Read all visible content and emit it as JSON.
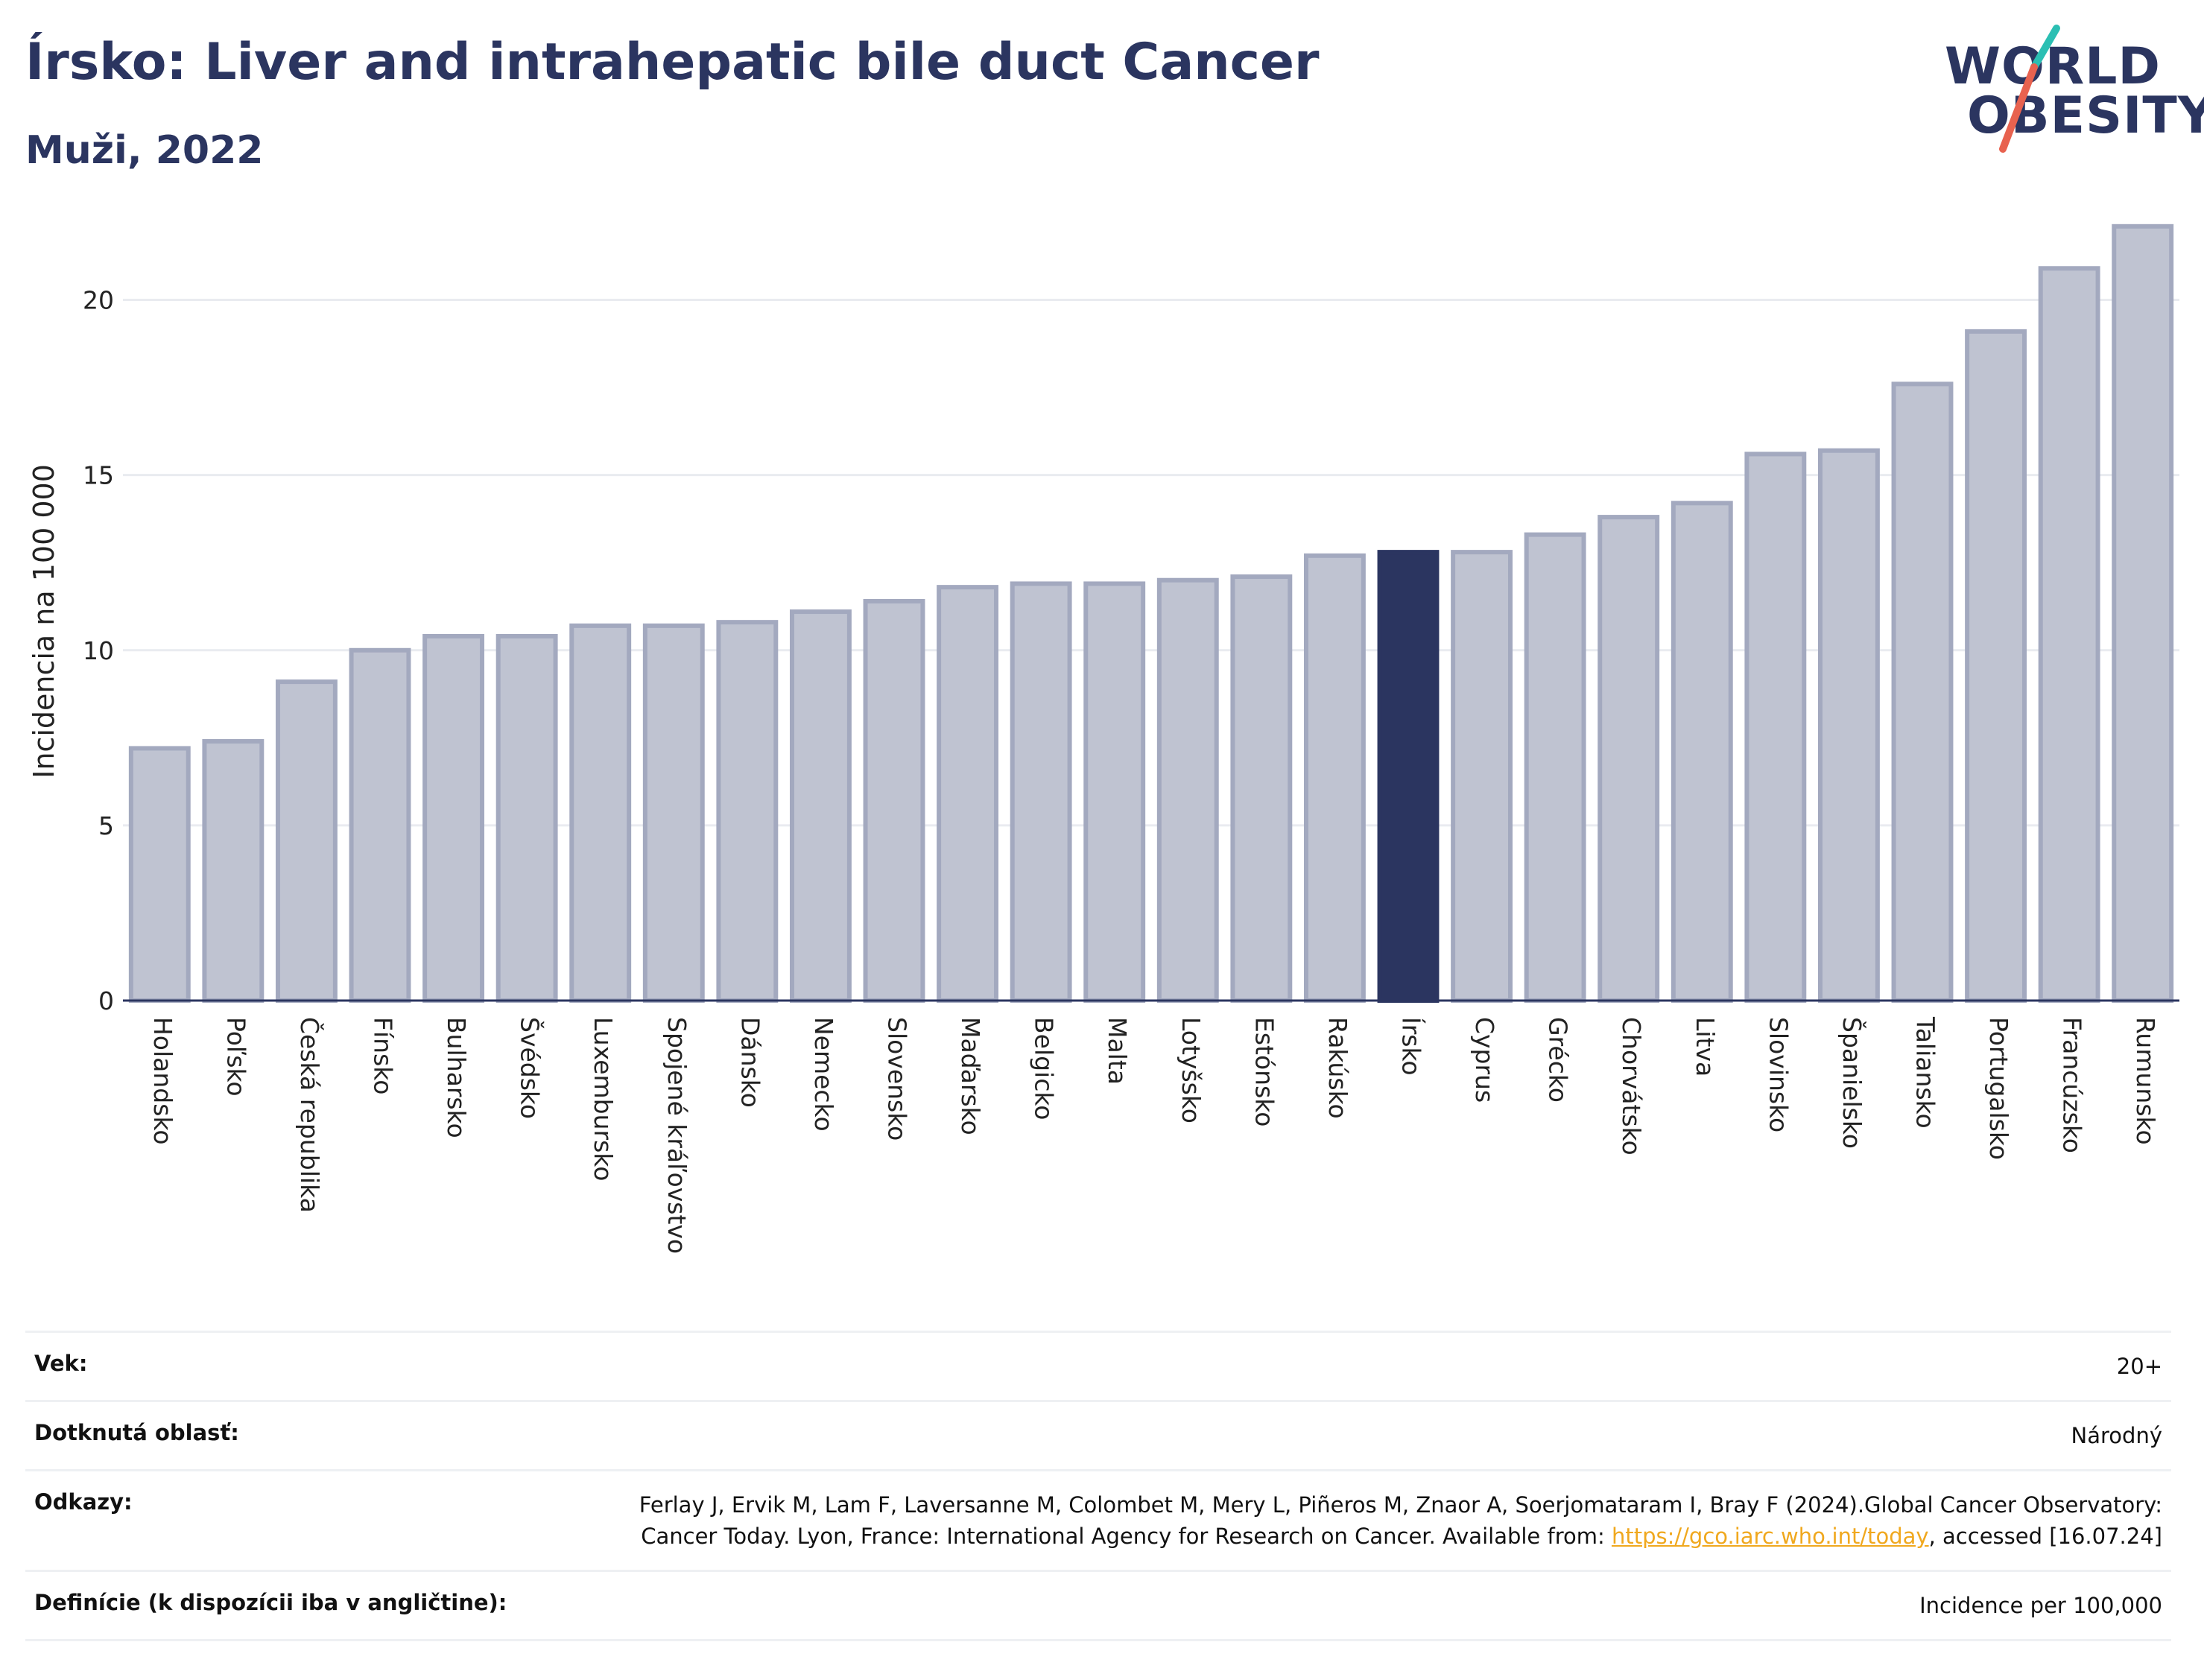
{
  "header": {
    "title": "Írsko: Liver and intrahepatic bile duct Cancer",
    "subtitle": "Muži, 2022"
  },
  "logo": {
    "line1": "WORLD",
    "line2": "OBESITY",
    "accent_teal": "#2bbfb3",
    "accent_red": "#e8624f"
  },
  "colors": {
    "bar": "#bfc3d1",
    "bar_stroke": "#a3a9bf",
    "highlight": "#2b3560"
  },
  "chart_data": {
    "type": "bar",
    "title": "Írsko: Liver and intrahepatic bile duct Cancer",
    "subtitle": "Muži, 2022",
    "xlabel": "",
    "ylabel": "Incidencia na 100 000",
    "ylim": [
      0,
      22.5
    ],
    "yticks": [
      0,
      5,
      10,
      15,
      20
    ],
    "grid": true,
    "highlight": "Írsko",
    "categories": [
      "Holandsko",
      "Poľsko",
      "Česká republika",
      "Fínsko",
      "Bulharsko",
      "Švédsko",
      "Luxembursko",
      "Spojené kráľovstvo",
      "Dánsko",
      "Nemecko",
      "Slovensko",
      "Maďarsko",
      "Belgicko",
      "Malta",
      "Lotyšsko",
      "Estónsko",
      "Rakúsko",
      "Írsko",
      "Cyprus",
      "Grécko",
      "Chorvátsko",
      "Litva",
      "Slovinsko",
      "Španielsko",
      "Taliansko",
      "Portugalsko",
      "Francúzsko",
      "Rumunsko"
    ],
    "values": [
      7.2,
      7.4,
      9.1,
      10.0,
      10.4,
      10.4,
      10.7,
      10.7,
      10.8,
      11.1,
      11.4,
      11.8,
      11.9,
      11.9,
      12.0,
      12.1,
      12.7,
      12.8,
      12.8,
      13.3,
      13.8,
      14.2,
      15.6,
      15.7,
      17.6,
      19.1,
      20.9,
      22.1
    ]
  },
  "meta": [
    {
      "key": "Vek:",
      "value": "20+"
    },
    {
      "key": "Dotknutá oblasť:",
      "value": "Národný"
    },
    {
      "key": "Odkazy:",
      "value_pre": "Ferlay J, Ervik M, Lam F, Laversanne M, Colombet M, Mery L, Piñeros M, Znaor A, Soerjomataram I, Bray F (2024).Global Cancer Observatory: Cancer Today. Lyon, France: International Agency for Research on Cancer. Available from: ",
      "link": "https://gco.iarc.who.int/today",
      "value_post": ", accessed [16.07.24]"
    },
    {
      "key": "Definície (k dispozícii iba v angličtine):",
      "value": "Incidence per 100,000"
    }
  ]
}
